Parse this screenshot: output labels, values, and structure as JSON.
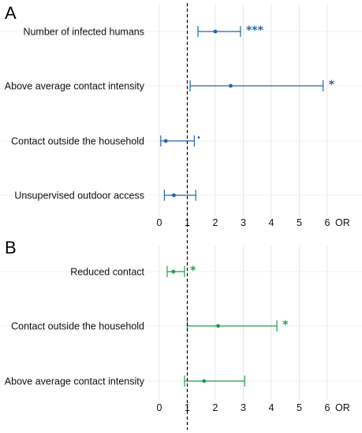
{
  "chart_data": [
    {
      "panel": "A",
      "type": "forest",
      "color": "#2166ac",
      "xlabel": "OR",
      "xlim": [
        0,
        6
      ],
      "reference_line": 1,
      "x_ticks": [
        0,
        1,
        2,
        3,
        4,
        5,
        6
      ],
      "grid": true,
      "rows": [
        {
          "label": "Number of infected humans",
          "or": 2.0,
          "ci_low": 1.38,
          "ci_high": 2.9,
          "significance": "***"
        },
        {
          "label": "Above average contact intensity",
          "or": 2.55,
          "ci_low": 1.1,
          "ci_high": 5.85,
          "significance": "*"
        },
        {
          "label": "Contact outside the household",
          "or": 0.23,
          "ci_low": 0.05,
          "ci_high": 1.25,
          "significance": "."
        },
        {
          "label": "Unsupervised outdoor access",
          "or": 0.52,
          "ci_low": 0.18,
          "ci_high": 1.3,
          "significance": ""
        }
      ]
    },
    {
      "panel": "B",
      "type": "forest",
      "color": "#1e9e4a",
      "xlabel": "OR",
      "xlim": [
        0,
        6
      ],
      "reference_line": 1,
      "x_ticks": [
        0,
        1,
        2,
        3,
        4,
        5,
        6
      ],
      "grid": true,
      "rows": [
        {
          "label": "Reduced contact",
          "or": 0.5,
          "ci_low": 0.28,
          "ci_high": 0.9,
          "significance": "*"
        },
        {
          "label": "Contact outside the household",
          "or": 2.1,
          "ci_low": 1.0,
          "ci_high": 4.2,
          "significance": "*"
        },
        {
          "label": "Above average contact intensity",
          "or": 1.6,
          "ci_low": 0.9,
          "ci_high": 3.05,
          "significance": ""
        }
      ]
    }
  ]
}
